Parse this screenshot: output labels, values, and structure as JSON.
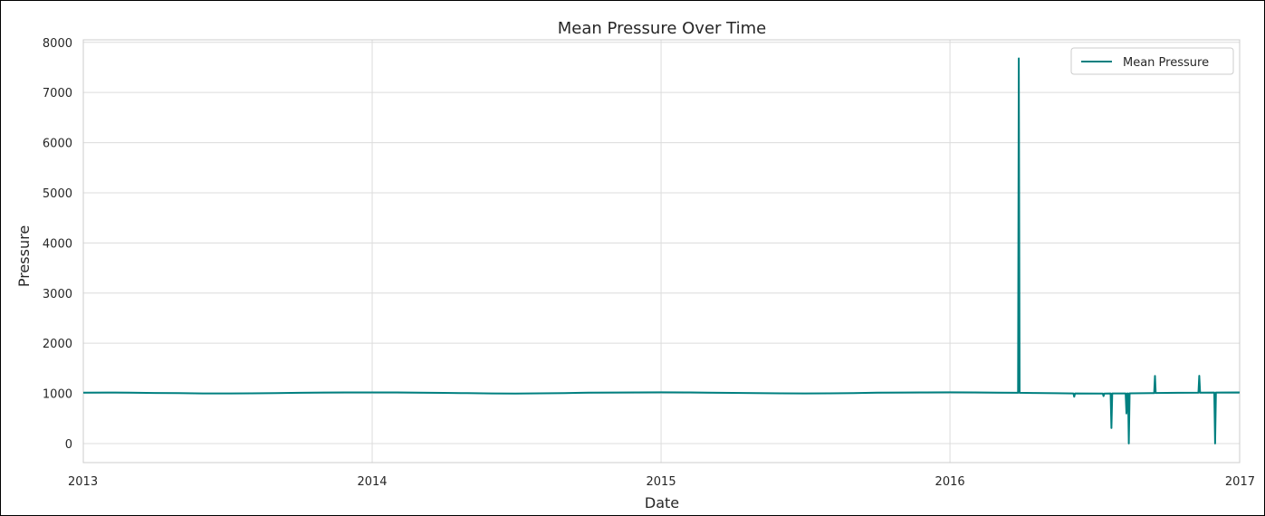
{
  "chart_data": {
    "type": "line",
    "title": "Mean Pressure Over Time",
    "xlabel": "Date",
    "ylabel": "Pressure",
    "xlim": [
      "2013-01-01",
      "2017-01-01"
    ],
    "ylim": [
      -380,
      8050
    ],
    "x_ticks": [
      "2013",
      "2014",
      "2015",
      "2016",
      "2017"
    ],
    "y_ticks": [
      0,
      1000,
      2000,
      3000,
      4000,
      5000,
      6000,
      7000,
      8000
    ],
    "grid": true,
    "legend": {
      "placement": "top-right",
      "entries": [
        "Mean Pressure"
      ]
    },
    "colors": {
      "line": "#008080",
      "grid": "#dcdcdc",
      "axes": "#cccccc"
    },
    "series": [
      {
        "name": "Mean Pressure",
        "points": [
          [
            "2013-01-01",
            1015.7
          ],
          [
            "2013-02-01",
            1017.2
          ],
          [
            "2013-03-01",
            1014.4
          ],
          [
            "2013-04-01",
            1009.0
          ],
          [
            "2013-05-01",
            1004.2
          ],
          [
            "2013-06-01",
            999.6
          ],
          [
            "2013-07-01",
            998.6
          ],
          [
            "2013-08-01",
            1000.8
          ],
          [
            "2013-09-01",
            1006.0
          ],
          [
            "2013-10-01",
            1012.2
          ],
          [
            "2013-11-01",
            1016.9
          ],
          [
            "2013-12-01",
            1018.8
          ],
          [
            "2014-01-01",
            1019.5
          ],
          [
            "2014-02-01",
            1018.3
          ],
          [
            "2014-03-01",
            1014.9
          ],
          [
            "2014-04-01",
            1009.8
          ],
          [
            "2014-05-01",
            1004.5
          ],
          [
            "2014-06-01",
            999.2
          ],
          [
            "2014-07-01",
            998.1
          ],
          [
            "2014-08-01",
            1000.5
          ],
          [
            "2014-09-01",
            1006.3
          ],
          [
            "2014-10-01",
            1013.0
          ],
          [
            "2014-11-01",
            1017.4
          ],
          [
            "2014-12-01",
            1019.6
          ],
          [
            "2015-01-01",
            1020.4
          ],
          [
            "2015-02-01",
            1018.9
          ],
          [
            "2015-03-01",
            1015.1
          ],
          [
            "2015-04-01",
            1010.2
          ],
          [
            "2015-05-01",
            1004.8
          ],
          [
            "2015-06-01",
            1000.1
          ],
          [
            "2015-07-01",
            998.9
          ],
          [
            "2015-08-01",
            1001.2
          ],
          [
            "2015-09-01",
            1006.7
          ],
          [
            "2015-10-01",
            1012.9
          ],
          [
            "2015-11-01",
            1017.6
          ],
          [
            "2015-12-01",
            1019.8
          ],
          [
            "2016-01-01",
            1020.7
          ],
          [
            "2016-02-01",
            1018.2
          ],
          [
            "2016-03-01",
            1014.6
          ],
          [
            "2016-03-27",
            1012.0
          ],
          [
            "2016-03-28",
            7679.3
          ],
          [
            "2016-03-29",
            1011.0
          ],
          [
            "2016-04-15",
            1008.5
          ],
          [
            "2016-05-15",
            1003.1
          ],
          [
            "2016-06-05",
            1000.0
          ],
          [
            "2016-06-06",
            935.0
          ],
          [
            "2016-06-07",
            999.0
          ],
          [
            "2016-07-12",
            998.0
          ],
          [
            "2016-07-13",
            945.0
          ],
          [
            "2016-07-14",
            998.0
          ],
          [
            "2016-07-22",
            998.5
          ],
          [
            "2016-07-23",
            310.0
          ],
          [
            "2016-07-24",
            999.0
          ],
          [
            "2016-08-10",
            1000.0
          ],
          [
            "2016-08-11",
            600.0
          ],
          [
            "2016-08-12",
            1000.0
          ],
          [
            "2016-08-13",
            1000.0
          ],
          [
            "2016-08-14",
            0.0
          ],
          [
            "2016-08-15",
            1001.0
          ],
          [
            "2016-09-15",
            1006.0
          ],
          [
            "2016-09-16",
            1350.0
          ],
          [
            "2016-09-17",
            1008.0
          ],
          [
            "2016-10-15",
            1011.0
          ],
          [
            "2016-11-10",
            1015.0
          ],
          [
            "2016-11-11",
            1352.0
          ],
          [
            "2016-11-12",
            1016.0
          ],
          [
            "2016-11-30",
            1017.0
          ],
          [
            "2016-12-01",
            0.0
          ],
          [
            "2016-12-02",
            1017.5
          ],
          [
            "2016-12-31",
            1019.0
          ],
          [
            "2017-01-01",
            1018.0
          ]
        ]
      }
    ]
  }
}
